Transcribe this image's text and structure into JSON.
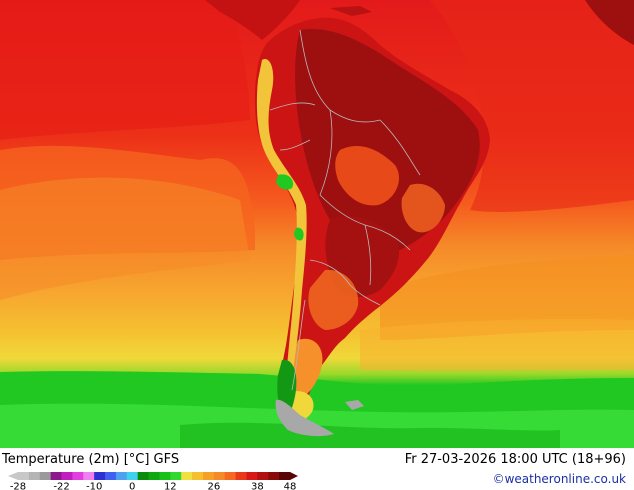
{
  "map": {
    "colors": {
      "deep_red": "#9e1010",
      "red": "#e31a1a",
      "red_orange": "#f0401a",
      "orange_red": "#f55a1e",
      "orange": "#f58a28",
      "light_orange": "#f7a830",
      "yellow_orange": "#f5c030",
      "yellow": "#f0d83a",
      "green": "#22c822",
      "light_green": "#3ade3a",
      "dark_green": "#139813",
      "land_gray": "#a8a8a8",
      "border": "#b8b8b8"
    }
  },
  "footer": {
    "title": "Temperature (2m) [°C] GFS",
    "datetime": "Fr 27-03-2026 18:00 UTC (18+96)",
    "copyright": "©weatheronline.co.uk"
  },
  "legend": {
    "ticks": [
      "-28",
      "-22",
      "-10",
      "0",
      "12",
      "26",
      "38",
      "48"
    ],
    "colors": [
      "#c8c8c8",
      "#b4b4b4",
      "#9a9a9a",
      "#8c1a8c",
      "#c01ec0",
      "#e040e0",
      "#f080f0",
      "#3030d0",
      "#4060f0",
      "#50a0f0",
      "#40d0f0",
      "#0a8c0a",
      "#10a810",
      "#18c018",
      "#30d830",
      "#f0e040",
      "#f5c030",
      "#f5a028",
      "#f58a28",
      "#f56a20",
      "#e83a1a",
      "#d81818",
      "#b01010",
      "#8a0a0a",
      "#5a0505"
    ]
  }
}
